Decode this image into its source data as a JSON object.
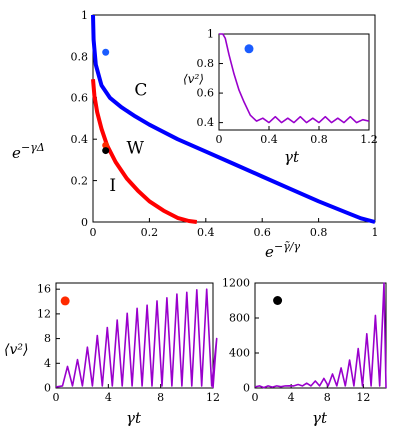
{
  "chart_data": [
    {
      "type": "line",
      "panel": "main",
      "xlabel": "e^{-γ̃/γ}",
      "ylabel": "e^{-γΔ}",
      "xlim": [
        0,
        1
      ],
      "ylim": [
        0,
        1
      ],
      "xticks": [
        "0",
        "0.2",
        "0.4",
        "0.6",
        "0.8",
        "1"
      ],
      "yticks": [
        "0",
        "0.2",
        "0.4",
        "0.6",
        "0.8",
        "1"
      ],
      "series": [
        {
          "color": "#0000ff",
          "x": [
            0,
            0.002,
            0.01,
            0.03,
            0.06,
            0.1,
            0.15,
            0.2,
            0.3,
            0.4,
            0.5,
            0.6,
            0.7,
            0.8,
            0.9,
            0.95,
            1.0
          ],
          "y": [
            1.0,
            0.88,
            0.76,
            0.66,
            0.6,
            0.555,
            0.51,
            0.47,
            0.4,
            0.34,
            0.28,
            0.22,
            0.16,
            0.1,
            0.045,
            0.018,
            0.0
          ]
        },
        {
          "color": "#ff0000",
          "x": [
            0,
            0.005,
            0.015,
            0.03,
            0.05,
            0.08,
            0.12,
            0.16,
            0.2,
            0.25,
            0.3,
            0.34,
            0.368
          ],
          "y": [
            0.69,
            0.61,
            0.53,
            0.45,
            0.37,
            0.29,
            0.21,
            0.15,
            0.1,
            0.055,
            0.02,
            0.005,
            0.0
          ]
        }
      ],
      "points": [
        {
          "x": 0.045,
          "y": 0.82,
          "color": "#1a5cff"
        },
        {
          "x": 0.045,
          "y": 0.37,
          "color": "#ff2a00"
        },
        {
          "x": 0.045,
          "y": 0.345,
          "color": "#000000"
        }
      ],
      "region_labels": [
        {
          "text": "C",
          "x": 0.17,
          "y": 0.61
        },
        {
          "text": "W",
          "x": 0.15,
          "y": 0.33
        },
        {
          "text": "I",
          "x": 0.07,
          "y": 0.15
        }
      ]
    },
    {
      "type": "line",
      "panel": "inset",
      "xlabel": "γt",
      "ylabel": "⟨v²⟩",
      "xlim": [
        0,
        1.2
      ],
      "ylim": [
        0.35,
        1.0
      ],
      "xticks": [
        "0",
        "0.4",
        "0.8",
        "1.2"
      ],
      "yticks": [
        "0.4",
        "0.6",
        "0.8",
        "1"
      ],
      "series": [
        {
          "color": "#9900cc",
          "x": [
            0,
            0.03,
            0.05,
            0.08,
            0.12,
            0.16,
            0.2,
            0.25,
            0.3,
            0.35,
            0.4,
            0.45,
            0.5,
            0.55,
            0.6,
            0.65,
            0.7,
            0.75,
            0.8,
            0.85,
            0.9,
            0.95,
            1.0,
            1.05,
            1.1,
            1.15,
            1.2
          ],
          "y": [
            1.0,
            1.0,
            0.97,
            0.86,
            0.73,
            0.62,
            0.54,
            0.45,
            0.41,
            0.43,
            0.4,
            0.44,
            0.4,
            0.43,
            0.4,
            0.44,
            0.4,
            0.43,
            0.4,
            0.44,
            0.4,
            0.43,
            0.4,
            0.44,
            0.4,
            0.42,
            0.41
          ]
        }
      ],
      "points": [
        {
          "x": 0.24,
          "y": 0.9,
          "color": "#1a5cff"
        }
      ]
    },
    {
      "type": "line",
      "panel": "bottom-left",
      "xlabel": "γt",
      "ylabel": "⟨v²⟩",
      "xlim": [
        0,
        12
      ],
      "ylim": [
        0,
        17
      ],
      "xticks": [
        "0",
        "4",
        "8",
        "12"
      ],
      "yticks": [
        "0",
        "4",
        "8",
        "12",
        "16"
      ],
      "series": [
        {
          "color": "#9900cc",
          "peaks": [
            3.5,
            4.6,
            6.6,
            8.5,
            9.8,
            11.0,
            12.1,
            12.9,
            13.4,
            14.1,
            14.6,
            15.2,
            15.5,
            15.9,
            16.0,
            8.0
          ],
          "period": 0.76,
          "start": 0.5
        }
      ],
      "points": [
        {
          "x": 0.7,
          "y": 14.1,
          "color": "#ff2a00"
        }
      ]
    },
    {
      "type": "line",
      "panel": "bottom-right",
      "xlabel": "γt",
      "ylabel": "",
      "xlim": [
        0,
        14.5
      ],
      "ylim": [
        0,
        1200
      ],
      "xticks": [
        "0",
        "4",
        "8",
        "12"
      ],
      "yticks": [
        "0",
        "400",
        "800",
        "1200"
      ],
      "series": [
        {
          "color": "#9900cc",
          "peaks": [
            5,
            10,
            15,
            25,
            40,
            55,
            80,
            110,
            160,
            230,
            320,
            450,
            620,
            830,
            1200
          ],
          "period": 0.95,
          "start": 0.5
        }
      ],
      "points": [
        {
          "x": 2.5,
          "y": 1000,
          "color": "#000000"
        }
      ]
    }
  ]
}
